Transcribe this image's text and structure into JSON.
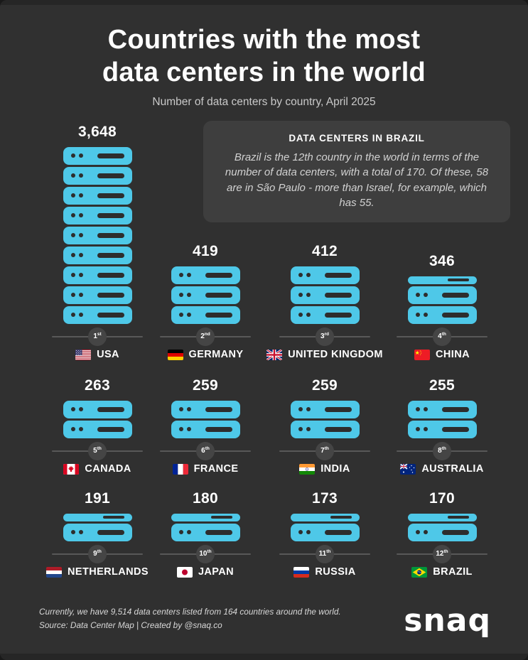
{
  "header": {
    "title_line1": "Countries with the most",
    "title_line2": "data centers in the world",
    "subtitle": "Number of data centers by country, April 2025"
  },
  "callout": {
    "title": "DATA CENTERS IN BRAZIL",
    "body": "Brazil is the 12th country in the world in terms of the number of data centers, with a total of 170. Of these, 58 are in São Paulo - more than Israel, for example, which has 55."
  },
  "chart_data": {
    "type": "bar",
    "title": "Countries with the most data centers in the world",
    "subtitle": "Number of data centers by country, April 2025",
    "unit": "data centers",
    "legend_position": "none",
    "grid": false,
    "categories": [
      "USA",
      "Germany",
      "United Kingdom",
      "China",
      "Canada",
      "France",
      "India",
      "Australia",
      "Netherlands",
      "Japan",
      "Russia",
      "Brazil"
    ],
    "values": [
      3648,
      419,
      412,
      346,
      263,
      259,
      259,
      255,
      191,
      180,
      173,
      170
    ],
    "items": [
      {
        "rank": 1,
        "rank_label": "1",
        "rank_suffix": "st",
        "country": "USA",
        "flag": "us",
        "value": 3648,
        "value_label": "3,648",
        "icon_units": 9
      },
      {
        "rank": 2,
        "rank_label": "2",
        "rank_suffix": "nd",
        "country": "GERMANY",
        "flag": "de",
        "value": 419,
        "value_label": "419",
        "icon_units": 3
      },
      {
        "rank": 3,
        "rank_label": "3",
        "rank_suffix": "rd",
        "country": "UNITED KINGDOM",
        "flag": "gb",
        "value": 412,
        "value_label": "412",
        "icon_units": 3
      },
      {
        "rank": 4,
        "rank_label": "4",
        "rank_suffix": "th",
        "country": "CHINA",
        "flag": "cn",
        "value": 346,
        "value_label": "346",
        "icon_units": 2.5
      },
      {
        "rank": 5,
        "rank_label": "5",
        "rank_suffix": "th",
        "country": "CANADA",
        "flag": "ca",
        "value": 263,
        "value_label": "263",
        "icon_units": 2
      },
      {
        "rank": 6,
        "rank_label": "6",
        "rank_suffix": "th",
        "country": "FRANCE",
        "flag": "fr",
        "value": 259,
        "value_label": "259",
        "icon_units": 2
      },
      {
        "rank": 7,
        "rank_label": "7",
        "rank_suffix": "th",
        "country": "INDIA",
        "flag": "in",
        "value": 259,
        "value_label": "259",
        "icon_units": 2
      },
      {
        "rank": 8,
        "rank_label": "8",
        "rank_suffix": "th",
        "country": "AUSTRALIA",
        "flag": "au",
        "value": 255,
        "value_label": "255",
        "icon_units": 2
      },
      {
        "rank": 9,
        "rank_label": "9",
        "rank_suffix": "th",
        "country": "NETHERLANDS",
        "flag": "nl",
        "value": 191,
        "value_label": "191",
        "icon_units": 1.5
      },
      {
        "rank": 10,
        "rank_label": "10",
        "rank_suffix": "th",
        "country": "JAPAN",
        "flag": "jp",
        "value": 180,
        "value_label": "180",
        "icon_units": 1.5
      },
      {
        "rank": 11,
        "rank_label": "11",
        "rank_suffix": "th",
        "country": "RUSSIA",
        "flag": "ru",
        "value": 173,
        "value_label": "173",
        "icon_units": 1.5
      },
      {
        "rank": 12,
        "rank_label": "12",
        "rank_suffix": "th",
        "country": "BRAZIL",
        "flag": "br",
        "value": 170,
        "value_label": "170",
        "icon_units": 1.5
      }
    ]
  },
  "footer": {
    "note": "Currently, we have 9,514 data centers listed from 164 countries around the world.",
    "source": "Source: Data Center Map | Created by @snaq.co",
    "logo": "snaq"
  },
  "colors": {
    "background": "#303030",
    "callout_background": "#3e3e3e",
    "server": "#4EC8E8",
    "text": "#ffffff",
    "muted_text": "#c9c9c9"
  }
}
